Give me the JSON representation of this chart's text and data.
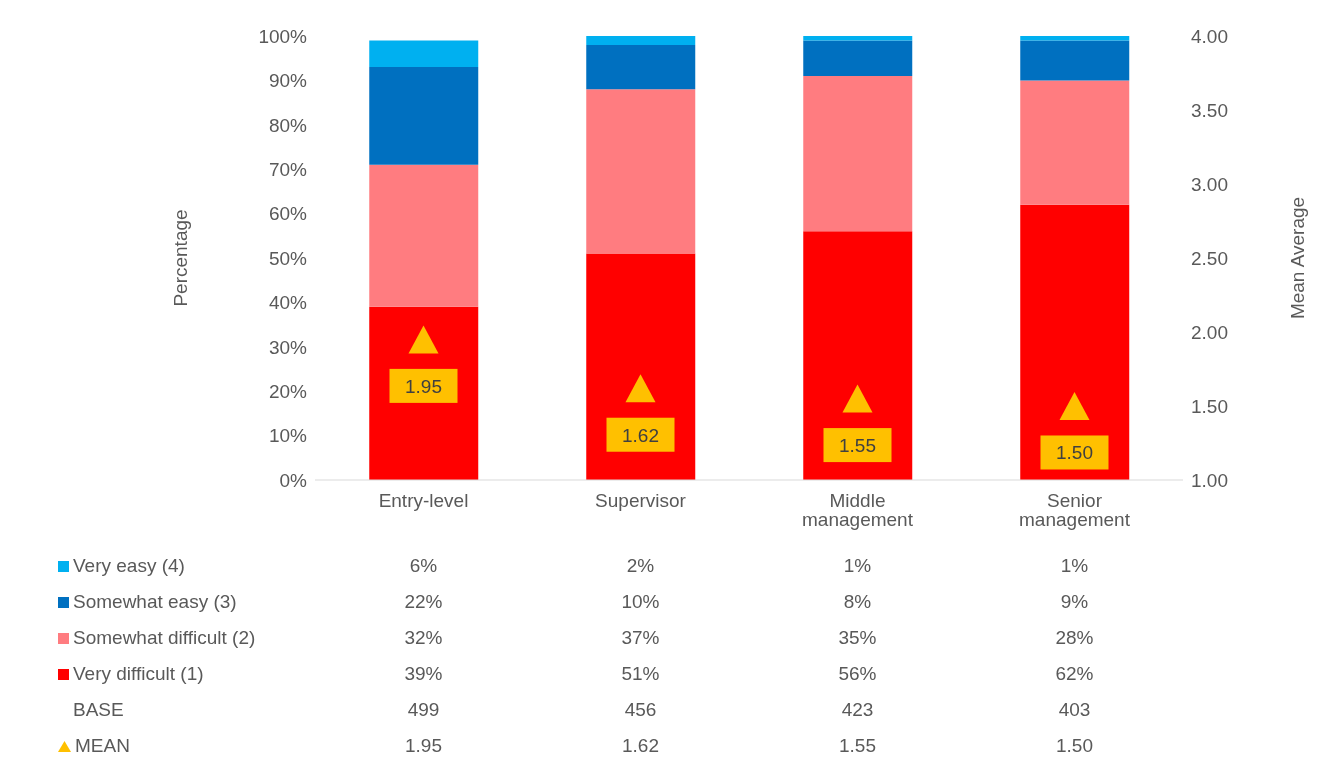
{
  "chart_data": {
    "type": "bar",
    "stacked": true,
    "ylabel": "Percentage",
    "y2label": "Mean Average",
    "categories": [
      "Entry-level",
      "Supervisor",
      "Middle management",
      "Senior management"
    ],
    "ylim": [
      0,
      100
    ],
    "yticks": [
      {
        "value": 0,
        "label": "0%"
      },
      {
        "value": 10,
        "label": "10%"
      },
      {
        "value": 20,
        "label": "20%"
      },
      {
        "value": 30,
        "label": "30%"
      },
      {
        "value": 40,
        "label": "40%"
      },
      {
        "value": 50,
        "label": "50%"
      },
      {
        "value": 60,
        "label": "60%"
      },
      {
        "value": 70,
        "label": "70%"
      },
      {
        "value": 80,
        "label": "80%"
      },
      {
        "value": 90,
        "label": "90%"
      },
      {
        "value": 100,
        "label": "100%"
      }
    ],
    "y2lim": [
      1,
      4
    ],
    "y2ticks": [
      {
        "value": 1,
        "label": "1.00"
      },
      {
        "value": 1.5,
        "label": "1.50"
      },
      {
        "value": 2,
        "label": "2.00"
      },
      {
        "value": 2.5,
        "label": "2.50"
      },
      {
        "value": 3,
        "label": "3.00"
      },
      {
        "value": 3.5,
        "label": "3.50"
      },
      {
        "value": 4,
        "label": "4.00"
      }
    ],
    "grid": false,
    "legend": "bottom",
    "data_labels": true,
    "annotations": [
      "BASE",
      "499",
      "456",
      "423",
      "403"
    ],
    "series": [
      {
        "name": "Very difficult (1)",
        "color": "#ff0000",
        "values": [
          39,
          51,
          56,
          62
        ],
        "value_labels": [
          "39%",
          "51%",
          "56%",
          "62%"
        ]
      },
      {
        "name": "Somewhat difficult (2)",
        "color": "#ff7c80",
        "values": [
          32,
          37,
          35,
          28
        ],
        "value_labels": [
          "32%",
          "37%",
          "35%",
          "28%"
        ]
      },
      {
        "name": "Somewhat easy (3)",
        "color": "#0070c0",
        "values": [
          22,
          10,
          8,
          9
        ],
        "value_labels": [
          "22%",
          "10%",
          "8%",
          "9%"
        ]
      },
      {
        "name": "Very easy (4)",
        "color": "#00b0f0",
        "values": [
          6,
          2,
          1,
          1
        ],
        "value_labels": [
          "6%",
          "2%",
          "1%",
          "1%"
        ]
      },
      {
        "name": "MEAN",
        "type": "scatter",
        "axis": "y2",
        "marker": "triangle",
        "color": "#ffc000",
        "values": [
          1.95,
          1.62,
          1.55,
          1.5
        ],
        "value_labels": [
          "1.95",
          "1.62",
          "1.55",
          "1.50"
        ]
      }
    ]
  }
}
